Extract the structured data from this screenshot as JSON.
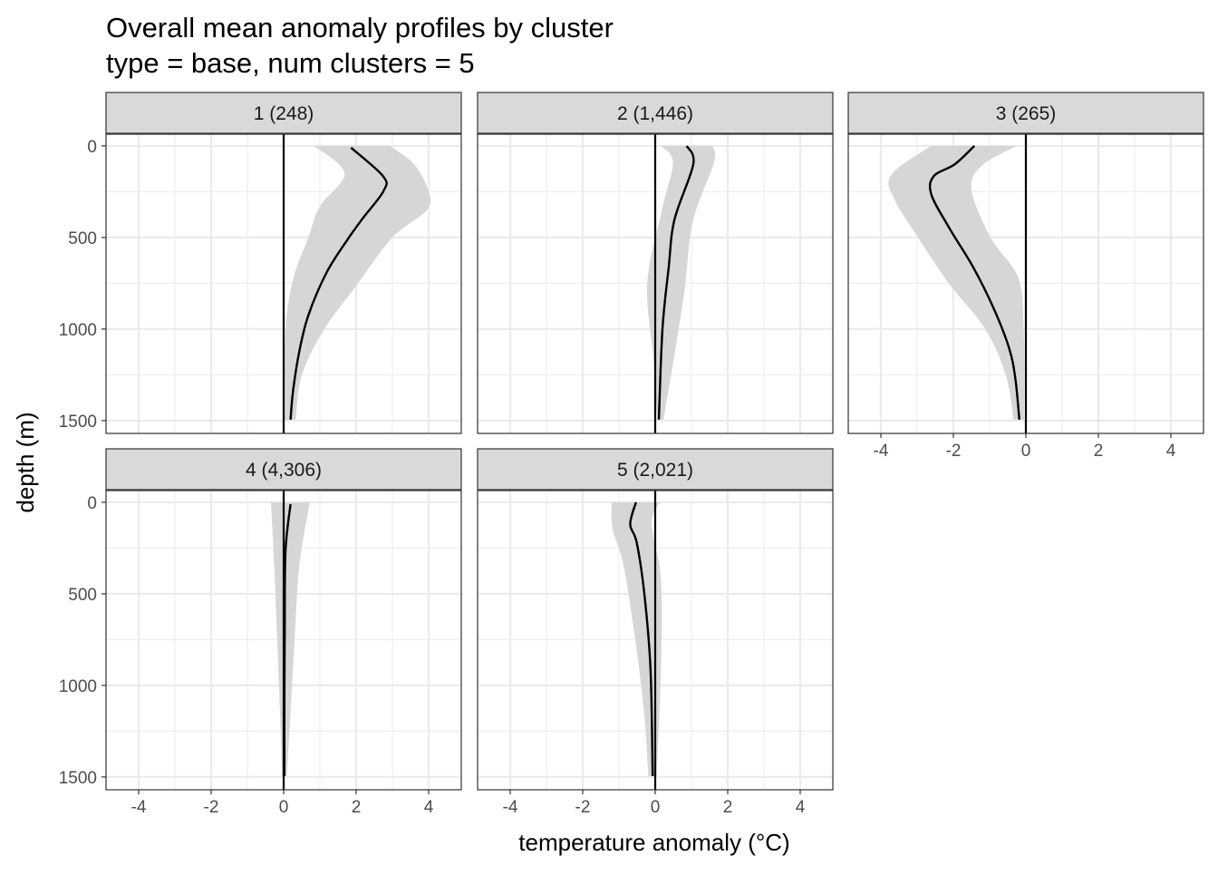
{
  "chart_data": {
    "type": "line",
    "title": "Overall mean anomaly profiles by cluster",
    "subtitle": "type = base, num clusters = 5",
    "xlabel": "temperature anomaly (°C)",
    "ylabel": "depth (m)",
    "xlim": [
      -4.9,
      4.9
    ],
    "ylim": [
      1570,
      -64
    ],
    "y_reversed": true,
    "x_ticks": [
      "-4",
      "-2",
      "0",
      "2",
      "4"
    ],
    "x_tick_values": [
      -4,
      -2,
      0,
      2,
      4
    ],
    "y_ticks": [
      "0",
      "500",
      "1000",
      "1500"
    ],
    "y_tick_values": [
      0,
      500,
      1000,
      1500
    ],
    "grid": true,
    "reference_line_x": 0,
    "colors": {
      "line": "#000000",
      "ribbon": "#d6d6d6",
      "strip": "#d9d9d9",
      "grid": "#ebebeb",
      "border": "#333333"
    },
    "facets": [
      {
        "label": "1 (248)",
        "mean": {
          "depth": [
            10,
            167,
            248,
            396,
            515,
            693,
            926,
            1124,
            1337,
            1495
          ],
          "value": [
            1.86,
            2.75,
            2.75,
            2.18,
            1.75,
            1.18,
            0.68,
            0.43,
            0.26,
            0.19
          ]
        },
        "lower": {
          "depth": [
            0,
            150,
            330,
            500,
            730,
            1010,
            1495
          ],
          "value": [
            0.84,
            1.68,
            1.0,
            0.68,
            0.26,
            0.05,
            0.02
          ]
        },
        "upper": {
          "depth": [
            0,
            100,
            250,
            350,
            500,
            764,
            1010,
            1254,
            1495
          ],
          "value": [
            2.93,
            3.6,
            4.0,
            3.95,
            3.0,
            2.0,
            1.09,
            0.5,
            0.33
          ]
        }
      },
      {
        "label": "2 (1,446)",
        "mean": {
          "depth": [
            0,
            100,
            403,
            667,
            1000,
            1495
          ],
          "value": [
            0.87,
            1.05,
            0.53,
            0.37,
            0.2,
            0.1
          ]
        },
        "lower": {
          "depth": [
            0,
            90,
            337,
            750,
            1165,
            1495
          ],
          "value": [
            0.16,
            0.49,
            0.2,
            -0.22,
            -0.05,
            0.06
          ]
        },
        "upper": {
          "depth": [
            0,
            90,
            420,
            830,
            1495
          ],
          "value": [
            1.58,
            1.62,
            1.03,
            0.78,
            0.23
          ]
        }
      },
      {
        "label": "3 (265)",
        "mean": {
          "depth": [
            0,
            100,
            165,
            264,
            446,
            660,
            891,
            1106,
            1271,
            1495
          ],
          "value": [
            -1.42,
            -1.96,
            -2.54,
            -2.61,
            -2.12,
            -1.46,
            -0.88,
            -0.46,
            -0.29,
            -0.18
          ]
        },
        "lower": {
          "depth": [
            0,
            157,
            290,
            505,
            752,
            1000,
            1254,
            1495
          ],
          "value": [
            -2.62,
            -3.71,
            -3.63,
            -2.96,
            -2.12,
            -1.12,
            -0.55,
            -0.34
          ]
        },
        "upper": {
          "depth": [
            0,
            107,
            240,
            505,
            720,
            1000,
            1495
          ],
          "value": [
            -0.25,
            -1.21,
            -1.5,
            -0.96,
            -0.21,
            -0.06,
            -0.05
          ]
        }
      },
      {
        "label": "4 (4,306)",
        "mean": {
          "depth": [
            10,
            270,
            700,
            1100,
            1495
          ],
          "value": [
            0.19,
            0.05,
            0.03,
            0.02,
            0.02
          ]
        },
        "lower": {
          "depth": [
            0,
            440,
            1260,
            1495
          ],
          "value": [
            -0.35,
            -0.24,
            -0.08,
            -0.05
          ]
        },
        "upper": {
          "depth": [
            0,
            350,
            760,
            1495
          ],
          "value": [
            0.72,
            0.43,
            0.3,
            0.09
          ]
        }
      },
      {
        "label": "5 (2,021)",
        "mean": {
          "depth": [
            0,
            120,
            220,
            500,
            910,
            1495
          ],
          "value": [
            -0.53,
            -0.69,
            -0.51,
            -0.3,
            -0.13,
            -0.07
          ]
        },
        "lower": {
          "depth": [
            0,
            140,
            340,
            750,
            1165,
            1495
          ],
          "value": [
            -1.2,
            -1.18,
            -0.88,
            -0.55,
            -0.3,
            -0.19
          ]
        },
        "upper": {
          "depth": [
            0,
            90,
            200,
            420,
            910,
            1495
          ],
          "value": [
            0.12,
            -0.09,
            -0.04,
            0.16,
            0.16,
            0.04
          ]
        }
      }
    ]
  }
}
